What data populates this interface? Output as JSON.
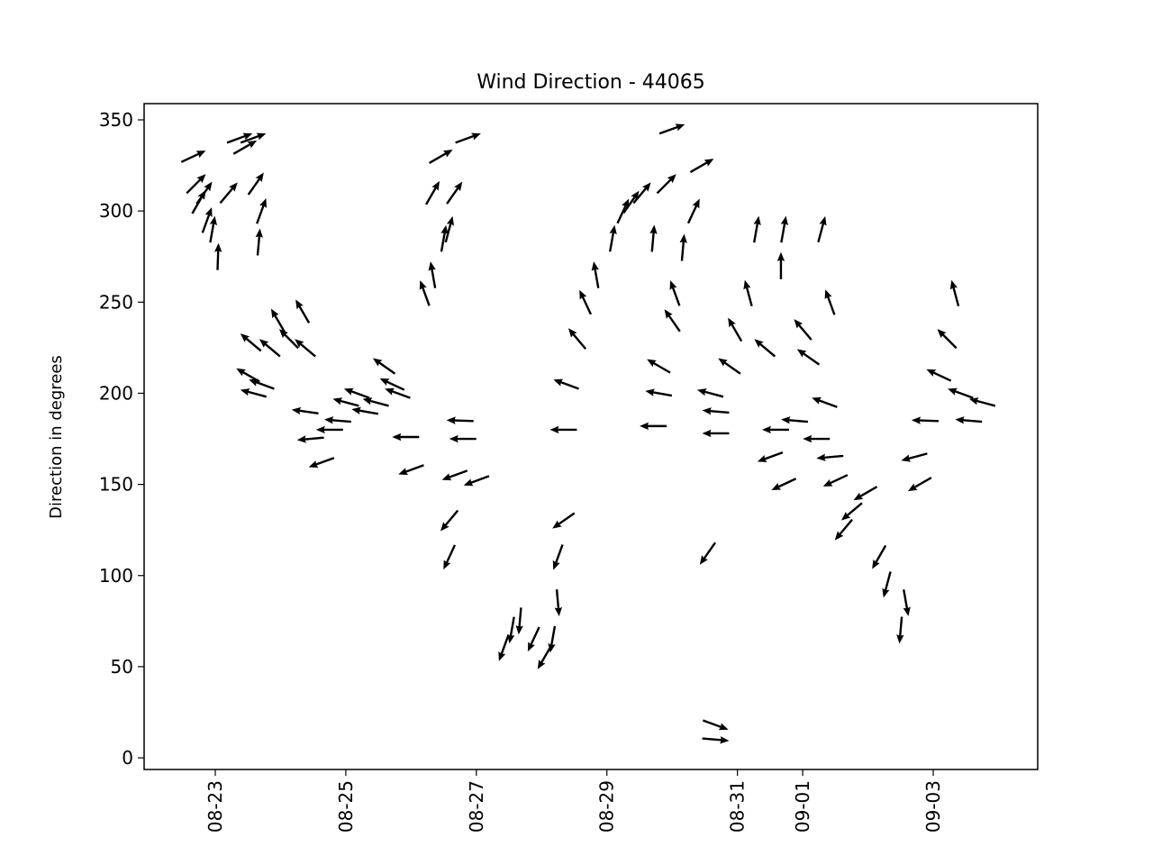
{
  "chart_data": {
    "type": "quiver",
    "title": "Wind Direction - 44065",
    "ylabel": "Direction in degrees",
    "color": "#000000",
    "xlim": [
      "08-21 21:50",
      "09-04 14:25"
    ],
    "xticks": [
      "08-23",
      "08-25",
      "08-27",
      "08-29",
      "08-31",
      "09-01",
      "09-03"
    ],
    "ylim": [
      -6.4,
      358.9
    ],
    "yticks": [
      0,
      50,
      100,
      150,
      200,
      250,
      300,
      350
    ],
    "x": [
      "08-22 16:00",
      "08-22 17:00",
      "08-22 18:00",
      "08-22 20:00",
      "08-22 21:00",
      "08-22 23:00",
      "08-23 01:00",
      "08-23 05:00",
      "08-23 09:00",
      "08-23 11:00",
      "08-23 14:00",
      "08-23 15:00",
      "08-23 17:00",
      "08-23 16:00",
      "08-23 13:00",
      "08-23 12:00",
      "08-23 14:00",
      "08-23 17:00",
      "08-23 20:00",
      "08-23 23:00",
      "08-24 03:00",
      "08-24 08:00",
      "08-24 09:00",
      "08-24 09:00",
      "08-24 11:00",
      "08-24 15:00",
      "08-24 18:00",
      "08-24 21:00",
      "08-25 00:00",
      "08-25 04:00",
      "08-25 07:00",
      "08-25 11:00",
      "08-25 14:00",
      "08-25 17:00",
      "08-25 19:00",
      "08-25 22:00",
      "08-26 00:00",
      "08-26 05:00",
      "08-26 08:00",
      "08-26 08:00",
      "08-26 11:00",
      "08-26 12:00",
      "08-26 14:00",
      "08-26 16:00",
      "08-26 21:00",
      "08-26 18:00",
      "08-26 19:00",
      "08-26 16:00",
      "08-26 14:00",
      "08-26 14:00",
      "08-27 00:00",
      "08-27 10:00",
      "08-27 13:00",
      "08-27 16:00",
      "08-27 21:00",
      "08-28 01:00",
      "08-28 04:00",
      "08-28 06:00",
      "08-28 06:00",
      "08-28 08:00",
      "08-28 08:00",
      "08-28 09:00",
      "08-28 13:00",
      "08-28 16:00",
      "08-28 20:00",
      "08-29 02:00",
      "08-29 06:00",
      "08-29 09:00",
      "08-29 13:00",
      "08-29 17:00",
      "08-29 19:00",
      "08-29 19:00",
      "08-29 17:00",
      "08-29 22:00",
      "08-30 00:00",
      "08-30 00:00",
      "08-30 01:00",
      "08-30 04:00",
      "08-30 08:00",
      "08-30 11:00",
      "08-30 13:00",
      "08-30 14:00",
      "08-30 16:00",
      "08-30 16:00",
      "08-30 16:00",
      "08-30 16:00",
      "08-30 21:00",
      "08-30 23:00",
      "08-31 04:00",
      "08-31 07:00",
      "08-31 10:00",
      "08-31 12:00",
      "08-31 14:00",
      "08-31 17:00",
      "08-31 16:00",
      "08-31 17:00",
      "08-31 21:00",
      "09-01 00:00",
      "09-01 02:00",
      "09-01 05:00",
      "09-01 07:00",
      "09-01 08:00",
      "09-01 10:00",
      "09-01 10:00",
      "09-01 12:00",
      "09-01 15:00",
      "09-01 18:00",
      "09-01 23:00",
      "09-02 04:00",
      "09-02 07:00",
      "09-02 12:00",
      "09-02 14:00",
      "09-02 17:00",
      "09-02 19:00",
      "09-02 21:00",
      "09-03 02:00",
      "09-03 05:00",
      "09-03 08:00",
      "09-03 10:00",
      "09-03 13:00",
      "09-03 18:00"
    ],
    "values": [
      330,
      315,
      305,
      310,
      295,
      290,
      275,
      310,
      340,
      335,
      340,
      315,
      300,
      283,
      228,
      210,
      200,
      205,
      225,
      240,
      230,
      245,
      225,
      190,
      175,
      162,
      180,
      185,
      195,
      200,
      190,
      195,
      215,
      205,
      200,
      176,
      158,
      255,
      265,
      310,
      330,
      285,
      290,
      310,
      340,
      185,
      175,
      155,
      130,
      110,
      152,
      60,
      70,
      75,
      65,
      55,
      65,
      85,
      110,
      130,
      180,
      205,
      230,
      250,
      265,
      285,
      300,
      305,
      310,
      285,
      215,
      200,
      182,
      315,
      240,
      345,
      255,
      280,
      300,
      325,
      112,
      200,
      190,
      178,
      18,
      10,
      215,
      235,
      255,
      290,
      225,
      165,
      180,
      150,
      270,
      290,
      185,
      235,
      220,
      175,
      290,
      195,
      250,
      165,
      152,
      125,
      135,
      145,
      110,
      95,
      70,
      85,
      165,
      150,
      185,
      210,
      230,
      255,
      200,
      185,
      195
    ],
    "angles": [
      25,
      45,
      60,
      55,
      70,
      80,
      88,
      50,
      20,
      30,
      20,
      55,
      70,
      85,
      140,
      150,
      165,
      160,
      140,
      120,
      135,
      120,
      140,
      172,
      185,
      200,
      180,
      175,
      165,
      160,
      170,
      165,
      145,
      155,
      160,
      180,
      200,
      110,
      100,
      60,
      30,
      80,
      75,
      55,
      20,
      178,
      180,
      200,
      230,
      245,
      200,
      250,
      260,
      265,
      245,
      240,
      260,
      275,
      250,
      215,
      180,
      160,
      130,
      115,
      100,
      80,
      65,
      55,
      50,
      85,
      150,
      170,
      180,
      45,
      125,
      20,
      110,
      85,
      65,
      30,
      235,
      165,
      175,
      180,
      340,
      355,
      145,
      120,
      105,
      80,
      140,
      200,
      180,
      205,
      90,
      80,
      175,
      130,
      145,
      180,
      75,
      160,
      110,
      185,
      205,
      230,
      220,
      210,
      240,
      255,
      265,
      280,
      195,
      210,
      178,
      155,
      135,
      105,
      160,
      175,
      165
    ]
  }
}
